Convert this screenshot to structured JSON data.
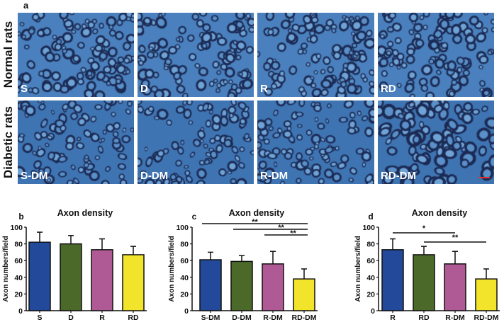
{
  "figure": {
    "panel_a_letter": "a",
    "row_labels": [
      "Normal rats",
      "Diabetic rats"
    ],
    "micrographs": [
      {
        "label": "S"
      },
      {
        "label": "D"
      },
      {
        "label": "R"
      },
      {
        "label": "RD"
      },
      {
        "label": "S-DM"
      },
      {
        "label": "D-DM"
      },
      {
        "label": "R-DM"
      },
      {
        "label": "RD-DM"
      }
    ],
    "scale_bar_color": "#e0302a"
  },
  "chart_data": [
    {
      "panel": "b",
      "type": "bar",
      "title": "Axon density",
      "xlabel": "",
      "ylabel": "Axon numbers/field",
      "ylim": [
        0,
        100
      ],
      "yticks": [
        "0",
        "20",
        "40",
        "60",
        "80",
        "100"
      ],
      "categories": [
        "S",
        "D",
        "R",
        "RD"
      ],
      "values": [
        82,
        80,
        73,
        67
      ],
      "errors": [
        12,
        10,
        13,
        10
      ],
      "colors": [
        "#234a9a",
        "#4b6a2a",
        "#b05a95",
        "#f2e42a"
      ],
      "significance": []
    },
    {
      "panel": "c",
      "type": "bar",
      "title": "Axon density",
      "xlabel": "",
      "ylabel": "Axon numbers/field",
      "ylim": [
        0,
        100
      ],
      "yticks": [
        "0",
        "20",
        "40",
        "60",
        "80",
        "100"
      ],
      "categories": [
        "S-DM",
        "D-DM",
        "R-DM",
        "RD-DM"
      ],
      "values": [
        61,
        59,
        56,
        38
      ],
      "errors": [
        9,
        7,
        15,
        12
      ],
      "colors": [
        "#234a9a",
        "#4b6a2a",
        "#b05a95",
        "#f2e42a"
      ],
      "significance": [
        {
          "from": 0,
          "to": 3,
          "label": "**"
        },
        {
          "from": 1,
          "to": 3,
          "label": "**"
        },
        {
          "from": 2,
          "to": 3,
          "label": "**"
        }
      ]
    },
    {
      "panel": "d",
      "type": "bar",
      "title": "Axon density",
      "xlabel": "",
      "ylabel": "Axon numbers/field",
      "ylim": [
        0,
        100
      ],
      "yticks": [
        "0",
        "20",
        "40",
        "60",
        "80",
        "100"
      ],
      "categories": [
        "R",
        "RD",
        "R-DM",
        "RD-DM"
      ],
      "values": [
        73,
        67,
        56,
        38
      ],
      "errors": [
        13,
        10,
        15,
        12
      ],
      "colors": [
        "#234a9a",
        "#4b6a2a",
        "#b05a95",
        "#f2e42a"
      ],
      "significance": [
        {
          "from": 0,
          "to": 2,
          "label": "*"
        },
        {
          "from": 1,
          "to": 3,
          "label": "**"
        }
      ]
    }
  ]
}
